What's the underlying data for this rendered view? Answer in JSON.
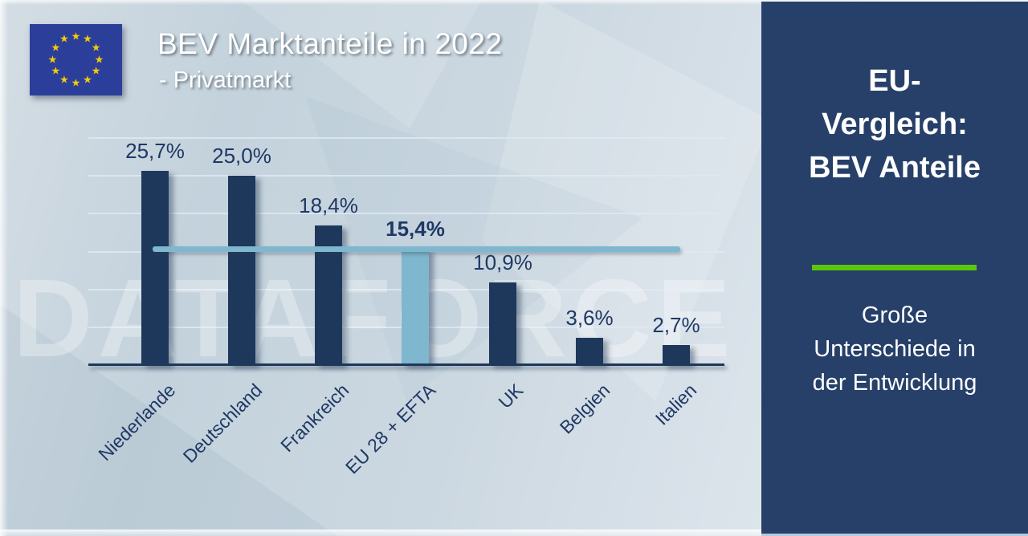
{
  "header": {
    "title": "BEV Marktanteile in 2022",
    "subtitle": "- Privatmarkt"
  },
  "watermark": "DATAFORCE",
  "sidebar": {
    "heading_lines": [
      "EU-",
      "Vergleich:",
      "BEV Anteile"
    ],
    "subtext_lines": [
      "Große",
      "Unterschiede in",
      "der Entwicklung"
    ],
    "accent_color": "#5cc70a",
    "background_color": "#264069"
  },
  "chart_data": {
    "type": "bar",
    "title": "BEV Marktanteile in 2022 - Privatmarkt",
    "categories": [
      "Niederlande",
      "Deutschland",
      "Frankreich",
      "EU 28 + EFTA",
      "UK",
      "Belgien",
      "Italien"
    ],
    "values": [
      25.7,
      25.0,
      18.4,
      15.4,
      10.9,
      3.6,
      2.7
    ],
    "value_labels": [
      "25,7%",
      "25,0%",
      "18,4%",
      "15,4%",
      "10,9%",
      "3,6%",
      "2,7%"
    ],
    "highlight_index": 3,
    "bar_color": "#1e385c",
    "highlight_color": "#7fb7ce",
    "reference_line": {
      "value": 15.4,
      "color": "#7fb7ce"
    },
    "xlabel": "",
    "ylabel": "",
    "ylim": [
      0,
      30
    ],
    "gridline_step": 5,
    "grid": true,
    "legend": false
  }
}
